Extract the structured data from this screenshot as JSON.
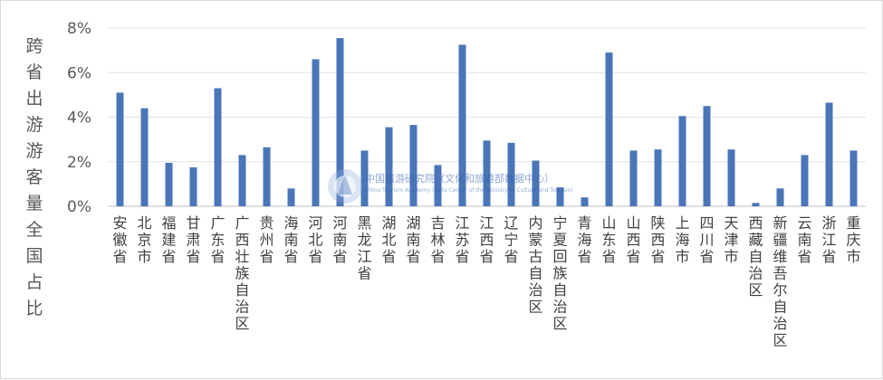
{
  "chart_data": {
    "type": "bar",
    "ylabel": "跨省出游游客量全国占比",
    "xlabel": "",
    "ylim": [
      0,
      8
    ],
    "yticks": [
      "0%",
      "2%",
      "4%",
      "6%",
      "8%"
    ],
    "grid": true,
    "legend": "none",
    "categories": [
      "安徽省",
      "北京市",
      "福建省",
      "甘肃省",
      "广东省",
      "广西壮族自治区",
      "贵州省",
      "海南省",
      "河北省",
      "河南省",
      "黑龙江省",
      "湖北省",
      "湖南省",
      "吉林省",
      "江苏省",
      "江西省",
      "辽宁省",
      "内蒙古自治区",
      "宁夏回族自治区",
      "青海省",
      "山东省",
      "山西省",
      "陕西省",
      "上海市",
      "四川省",
      "天津市",
      "西藏自治区",
      "新疆维吾尔自治区",
      "云南省",
      "浙江省",
      "重庆市"
    ],
    "values": [
      5.1,
      4.4,
      1.95,
      1.75,
      5.3,
      2.3,
      2.65,
      0.8,
      6.6,
      7.55,
      2.5,
      3.55,
      3.65,
      1.85,
      7.25,
      2.95,
      2.85,
      2.05,
      0.85,
      0.4,
      6.9,
      2.5,
      2.55,
      4.05,
      4.5,
      2.55,
      0.15,
      0.8,
      2.3,
      4.65,
      2.5
    ],
    "bar_color": "#4a76b8"
  },
  "watermark": {
    "line1": "中国旅游研究院（文化和旅游部数据中心）",
    "line2": "China Tourism Academy (Data Center of the Ministry of Culture and Tourism)"
  }
}
